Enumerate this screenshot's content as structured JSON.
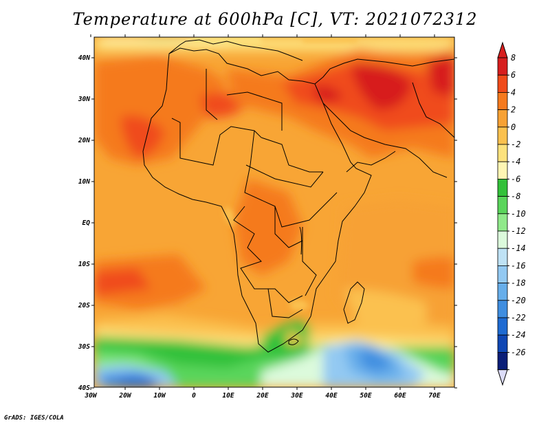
{
  "title": "Temperature at 600hPa [C], VT: 2021072312",
  "footer": "GrADS: IGES/COLA",
  "map": {
    "lat_labels": [
      "40N",
      "30N",
      "20N",
      "10N",
      "EQ",
      "10S",
      "20S",
      "30S",
      "40S"
    ],
    "lon_labels": [
      "30W",
      "20W",
      "10W",
      "0",
      "10E",
      "20E",
      "30E",
      "40E",
      "50E",
      "60E",
      "70E"
    ]
  },
  "colorbar": {
    "labels": [
      "8",
      "6",
      "4",
      "2",
      "0",
      "-2",
      "-4",
      "-6",
      "-8",
      "-10",
      "-12",
      "-14",
      "-16",
      "-18",
      "-20",
      "-22",
      "-24",
      "-26"
    ],
    "colors": [
      "#d71e1e",
      "#f04b1a",
      "#f57a1e",
      "#f7a134",
      "#fbc14f",
      "#fde27d",
      "#fff6b4",
      "#33c13a",
      "#5ad55b",
      "#90e98a",
      "#dcfadc",
      "#bfe2f5",
      "#93c9f2",
      "#67aeea",
      "#3f8ee0",
      "#1e6bd2",
      "#0f47b4",
      "#0a1e78"
    ],
    "end_top_color": "#d71e1e",
    "end_bottom_color": "#dcdcf8"
  }
}
